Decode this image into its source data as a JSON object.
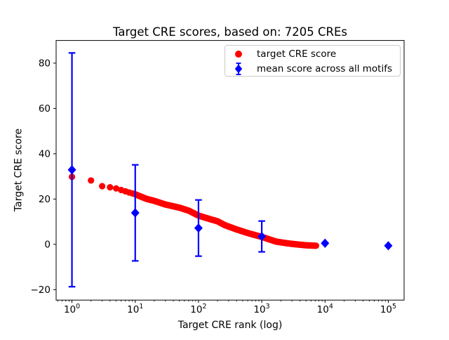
{
  "chart_data": {
    "type": "scatter",
    "title": "Target CRE scores, based on: 7205 CREs",
    "xlabel": "Target CRE rank (log)",
    "ylabel": "Target CRE score",
    "x_scale": "log10",
    "xlim": [
      0.562,
      177828
    ],
    "ylim": [
      -24.6,
      90.0
    ],
    "x_ticks": [
      1,
      10,
      100,
      1000,
      10000,
      100000
    ],
    "x_tick_labels": [
      "10^0",
      "10^1",
      "10^2",
      "10^3",
      "10^4",
      "10^5"
    ],
    "y_ticks": [
      -20,
      0,
      20,
      40,
      60,
      80
    ],
    "y_tick_labels": [
      "−20",
      "0",
      "20",
      "40",
      "60",
      "80"
    ],
    "grid": false,
    "n_cres": 7205,
    "series": [
      {
        "name": "target CRE score",
        "color": "#ff0000",
        "marker": "circle",
        "n_points": 7205,
        "rank_range": [
          1,
          7205
        ],
        "points": [
          [
            1,
            29.8
          ],
          [
            2,
            28.2
          ],
          [
            3,
            25.7
          ],
          [
            4,
            25.2
          ],
          [
            5,
            24.7
          ],
          [
            6,
            24.0
          ],
          [
            7,
            23.4
          ],
          [
            8,
            22.9
          ],
          [
            9,
            22.5
          ],
          [
            10,
            22.1
          ],
          [
            15,
            20.1
          ],
          [
            20,
            19.2
          ],
          [
            30,
            17.6
          ],
          [
            50,
            16.2
          ],
          [
            70,
            14.9
          ],
          [
            100,
            12.7
          ],
          [
            150,
            11.2
          ],
          [
            200,
            10.2
          ],
          [
            260,
            8.5
          ],
          [
            400,
            6.6
          ],
          [
            600,
            5.0
          ],
          [
            1000,
            3.3
          ],
          [
            1700,
            1.2
          ],
          [
            2500,
            0.5
          ],
          [
            3300,
            0.1
          ],
          [
            5000,
            -0.4
          ],
          [
            7205,
            -0.6
          ]
        ]
      },
      {
        "name": "mean score across all motifs",
        "color": "#0000ff",
        "marker": "diamond",
        "x": [
          1,
          10,
          100,
          1000,
          10000,
          100000
        ],
        "y": [
          32.9,
          13.9,
          7.2,
          3.5,
          0.5,
          -0.6
        ],
        "yerr": [
          51.6,
          21.2,
          12.4,
          6.8,
          0,
          0
        ]
      }
    ],
    "legend": {
      "position": "upper right",
      "entries": [
        {
          "label": "target CRE score",
          "marker": "circle",
          "color": "#ff0000"
        },
        {
          "label": "mean score across all motifs",
          "marker": "diamond-errorbar",
          "color": "#0000ff"
        }
      ]
    },
    "colors": {
      "background": "#ffffff",
      "axis": "#000000",
      "legend_border": "#cccccc"
    }
  }
}
